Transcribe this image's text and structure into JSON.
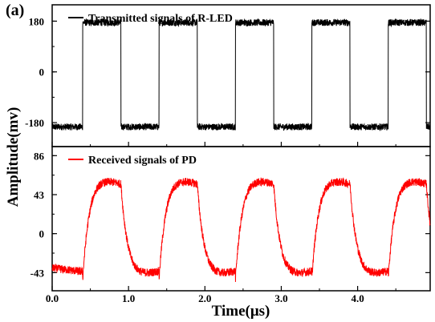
{
  "panel_label": "(a)",
  "chart_data": [
    {
      "type": "line",
      "legend": "Transmitted signals of R-LED",
      "color": "#000000",
      "xlim": [
        0,
        4.95
      ],
      "ylim": [
        -265,
        238
      ],
      "yticks": [
        "180",
        "0",
        "-180"
      ],
      "ytick_values": [
        180,
        0,
        -180
      ],
      "grid": false,
      "legend_position": "top-left",
      "series": [
        {
          "name": "Transmitted signals of R-LED",
          "waveform": "square",
          "period_us": 1.0,
          "rise_time_us": 0.4,
          "fall_time_us": 0.9,
          "high_mv": 175,
          "low_mv": -195
        }
      ]
    },
    {
      "type": "line",
      "legend": "Received signals of PD",
      "color": "#ff0000",
      "xlim": [
        0,
        4.95
      ],
      "ylim": [
        -63,
        96
      ],
      "yticks": [
        "86",
        "43",
        "0",
        "-43"
      ],
      "ytick_values": [
        86,
        43,
        0,
        -43
      ],
      "grid": false,
      "legend_position": "top-left",
      "series": [
        {
          "name": "Received signals of PD",
          "waveform": "rc-charge",
          "period_us": 1.0,
          "rise_start_us": 0.4,
          "fall_start_us": 0.9,
          "max_mv": 65,
          "min_mv": -50,
          "start_mv": -38
        }
      ]
    }
  ],
  "x_axis": {
    "title": "Time(μs)",
    "ticks": [
      "0.0",
      "1.0",
      "2.0",
      "3.0",
      "4.0"
    ],
    "tick_values": [
      0,
      1,
      2,
      3,
      4
    ]
  },
  "y_axis": {
    "title": "Amplitude(mv)"
  }
}
